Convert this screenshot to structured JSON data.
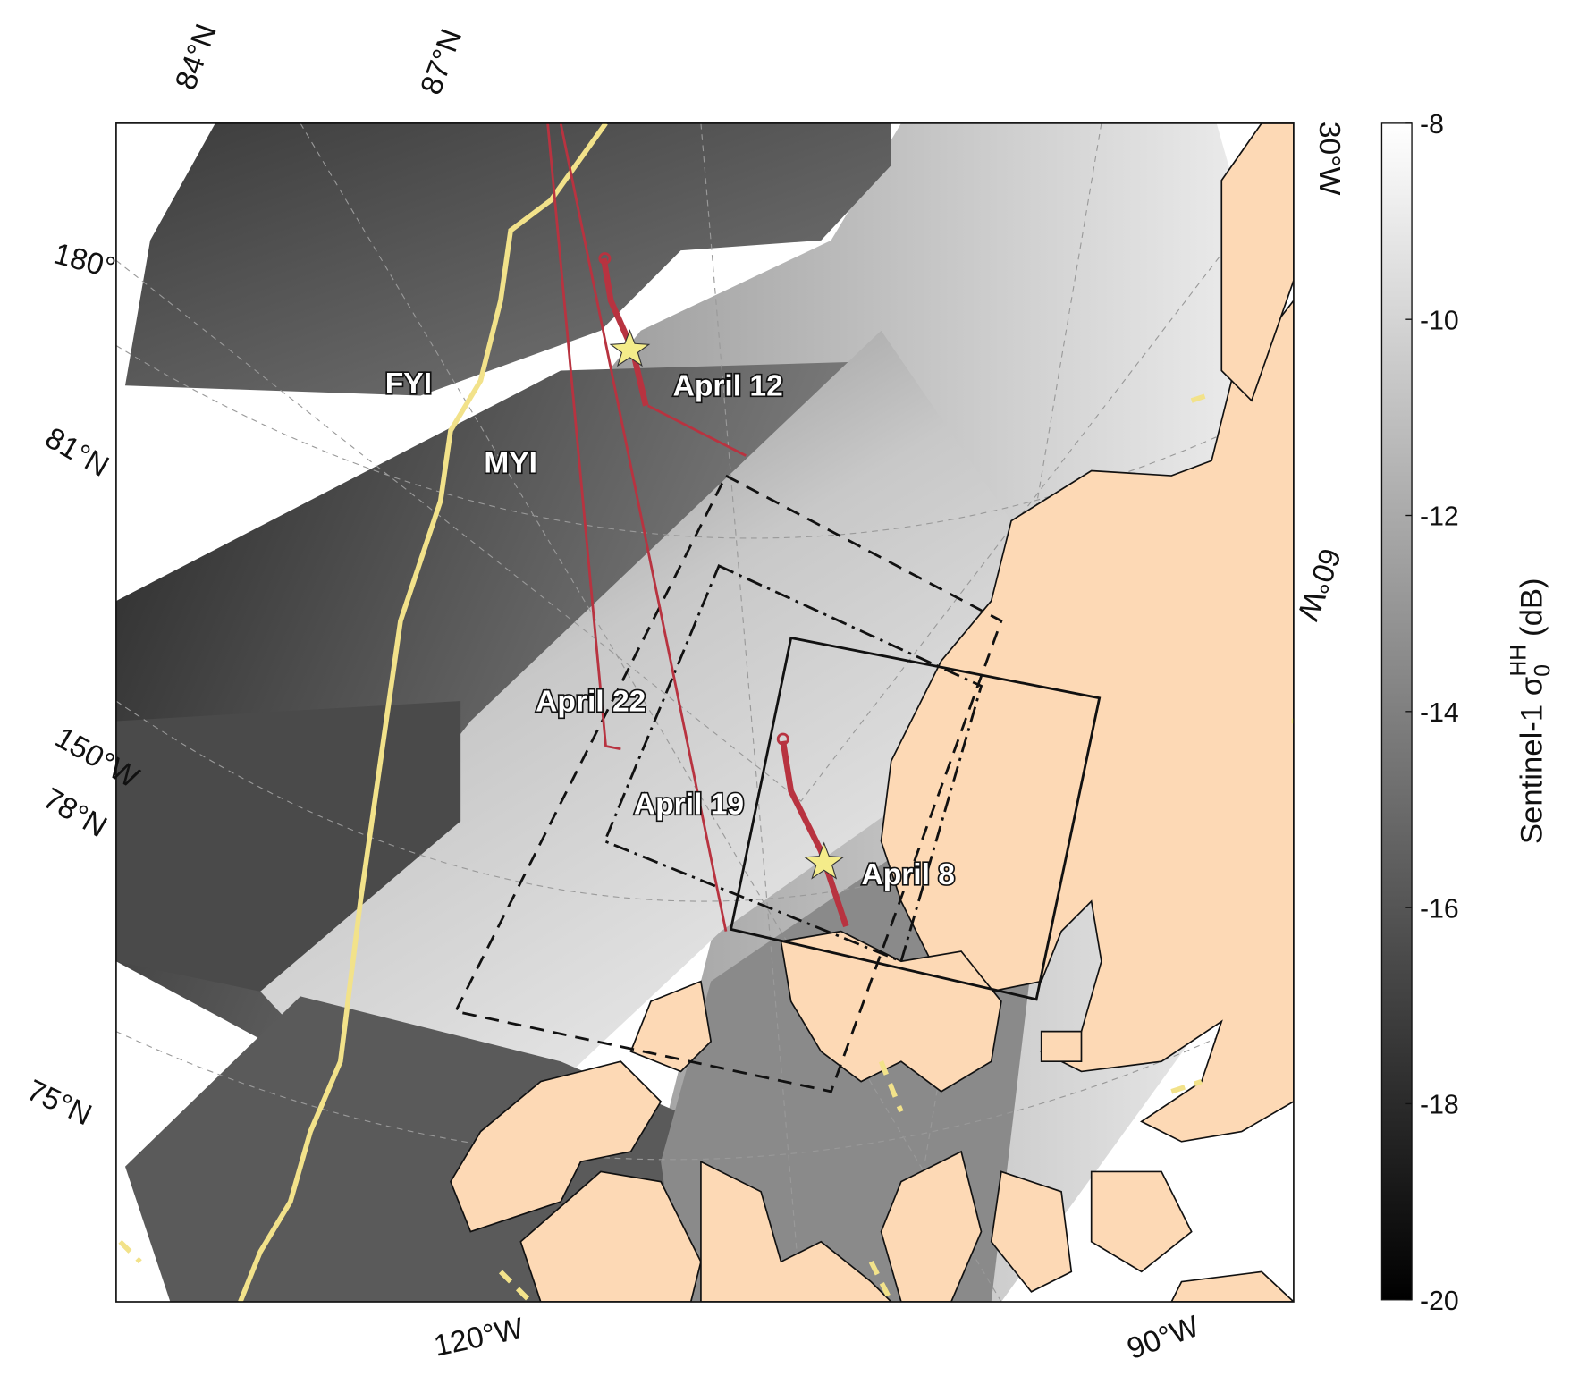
{
  "map": {
    "graticule_labels": [
      "84°N",
      "87°N",
      "180°",
      "81°N",
      "150°W",
      "78°N",
      "75°N",
      "120°W",
      "90°W",
      "30°W",
      "60°W"
    ],
    "annotations": [
      "FYI",
      "MYI",
      "April 12",
      "April 22",
      "April 19",
      "April 8"
    ],
    "colorbar": {
      "label": {
        "prefix": "Sentinel-1 σ",
        "sub": "0",
        "sup": "HH",
        "suffix": "(dB)"
      },
      "lim": [
        -20,
        -8
      ],
      "ticks": [
        -8,
        -10,
        -12,
        -14,
        -16,
        -18,
        -20
      ]
    }
  }
}
